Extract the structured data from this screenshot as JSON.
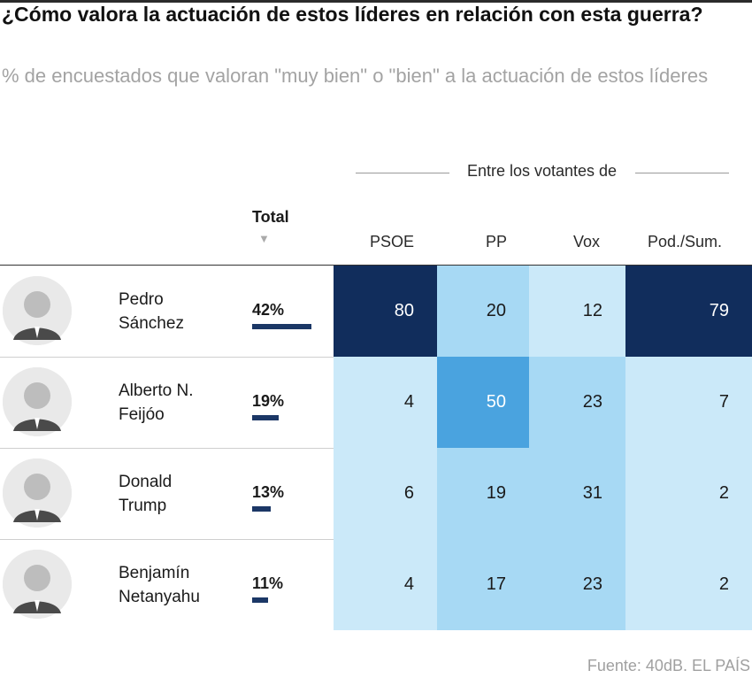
{
  "title": "¿Cómo valora la actuación de estos líderes en relación con esta guerra?",
  "subtitle": "% de encuestados que valoran \"muy bien\" o \"bien\" a la actuación de estos líderes",
  "header": {
    "group_label": "Entre los votantes de",
    "total_label": "Total",
    "sort_icon": "▼",
    "columns": [
      "PSOE",
      "PP",
      "Vox",
      "Pod./Sum."
    ]
  },
  "source": "Fuente: 40dB. EL PAÍS",
  "colors": {
    "dark": "#112d5c",
    "mid": "#4aa3df",
    "light": "#a7d9f4",
    "pale": "#cbe9f9",
    "total_bar": "#1b3766"
  },
  "chart_data": {
    "type": "table",
    "title": "¿Cómo valora la actuación de estos líderes en relación con esta guerra?",
    "unit": "%",
    "columns": [
      "PSOE",
      "PP",
      "Vox",
      "Pod./Sum."
    ],
    "rows": [
      {
        "name_line1": "Pedro",
        "name_line2": "Sánchez",
        "avatar_icon": "leader-photo-icon",
        "total": 42,
        "total_label": "42%",
        "values": [
          80,
          20,
          12,
          79
        ]
      },
      {
        "name_line1": "Alberto N.",
        "name_line2": "Feijóo",
        "avatar_icon": "leader-photo-icon",
        "total": 19,
        "total_label": "19%",
        "values": [
          4,
          50,
          23,
          7
        ]
      },
      {
        "name_line1": "Donald",
        "name_line2": "Trump",
        "avatar_icon": "leader-photo-icon",
        "total": 13,
        "total_label": "13%",
        "values": [
          6,
          19,
          31,
          2
        ]
      },
      {
        "name_line1": "Benjamín",
        "name_line2": "Netanyahu",
        "avatar_icon": "leader-photo-icon",
        "total": 11,
        "total_label": "11%",
        "values": [
          4,
          17,
          23,
          2
        ]
      }
    ]
  }
}
